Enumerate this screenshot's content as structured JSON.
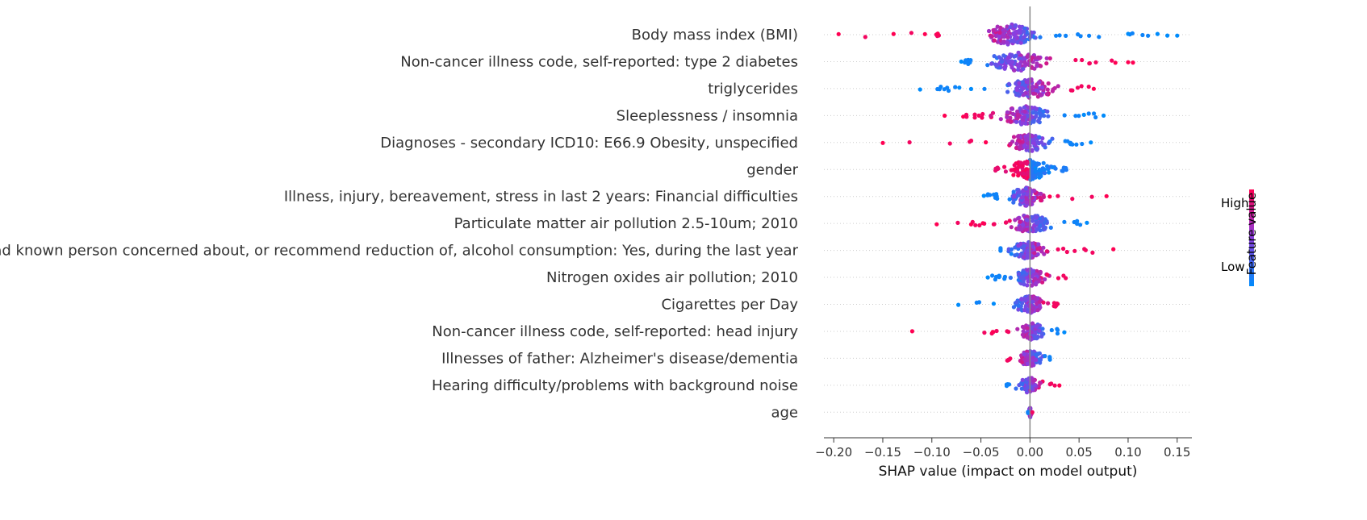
{
  "chart_data": {
    "type": "scatter",
    "subtype": "shap-beeswarm",
    "title": "",
    "xlabel": "SHAP value (impact on model output)",
    "xlim": [
      -0.21,
      0.165
    ],
    "xticks": [
      -0.2,
      -0.15,
      -0.1,
      -0.05,
      0.0,
      0.05,
      0.1,
      0.15
    ],
    "xtick_labels": [
      "−0.20",
      "−0.15",
      "−0.10",
      "−0.05",
      "0.00",
      "0.05",
      "0.10",
      "0.15"
    ],
    "colorbar": {
      "label": "Feature value",
      "high_label": "High",
      "low_label": "Low",
      "low_color": "#008bfb",
      "high_color": "#ff0052"
    },
    "features": [
      {
        "name": "Body mass index (BMI)",
        "min": -0.195,
        "max": 0.15,
        "mode": -0.02,
        "n": 130,
        "spread": 0.022,
        "hw": 13,
        "corr": -1,
        "outliers": [
          [
            -0.195,
            1
          ],
          [
            -0.139,
            1
          ],
          [
            -0.107,
            1
          ],
          [
            -0.094,
            1
          ],
          [
            0.1,
            0
          ],
          [
            0.13,
            0
          ],
          [
            0.14,
            0
          ],
          [
            0.15,
            0
          ]
        ]
      },
      {
        "name": "Non-cancer illness code, self-reported: type 2 diabetes",
        "min": -0.07,
        "max": 0.105,
        "mode": -0.01,
        "n": 120,
        "spread": 0.025,
        "hw": 12,
        "corr": 1,
        "outliers": [
          [
            -0.07,
            0
          ],
          [
            0.087,
            1
          ],
          [
            0.1,
            1
          ],
          [
            0.105,
            1
          ]
        ]
      },
      {
        "name": "triglycerides",
        "min": -0.112,
        "max": 0.065,
        "mode": 0.0,
        "n": 110,
        "spread": 0.02,
        "hw": 12,
        "corr": 1,
        "outliers": [
          [
            -0.112,
            0
          ],
          [
            -0.072,
            0
          ],
          [
            -0.06,
            0
          ],
          [
            0.065,
            1
          ]
        ]
      },
      {
        "name": "Sleeplessness / insomnia",
        "min": -0.087,
        "max": 0.075,
        "mode": -0.005,
        "n": 110,
        "spread": 0.02,
        "hw": 12,
        "corr": -1,
        "outliers": [
          [
            -0.087,
            1
          ],
          [
            -0.068,
            1
          ],
          [
            0.055,
            0
          ],
          [
            0.075,
            0
          ]
        ]
      },
      {
        "name": "Diagnoses - secondary ICD10: E66.9 Obesity, unspecified",
        "min": -0.15,
        "max": 0.062,
        "mode": 0.0,
        "n": 100,
        "spread": 0.016,
        "hw": 12,
        "corr": -1,
        "outliers": [
          [
            -0.15,
            1
          ],
          [
            -0.045,
            1
          ],
          [
            0.062,
            0
          ]
        ]
      },
      {
        "name": "gender",
        "min": -0.036,
        "max": 0.04,
        "mode": 0.0,
        "n": 110,
        "spread": 0.016,
        "hw": 13,
        "corr": -1,
        "split": true,
        "outliers": []
      },
      {
        "name": "Illness, injury, bereavement, stress in last 2 years: Financial difficulties",
        "min": -0.047,
        "max": 0.078,
        "mode": -0.004,
        "n": 100,
        "spread": 0.014,
        "hw": 12,
        "corr": 1,
        "outliers": [
          [
            -0.047,
            0
          ],
          [
            0.078,
            1
          ]
        ]
      },
      {
        "name": "Particulate matter air pollution 2.5-10um; 2010",
        "min": -0.095,
        "max": 0.058,
        "mode": 0.0,
        "n": 100,
        "spread": 0.016,
        "hw": 12,
        "corr": -1,
        "outliers": [
          [
            -0.095,
            1
          ],
          [
            -0.06,
            1
          ],
          [
            -0.048,
            1
          ],
          [
            0.058,
            0
          ]
        ]
      },
      {
        "name": "Ever had known person concerned about, or recommend reduction of, alcohol consumption: Yes, during the last year",
        "min": -0.03,
        "max": 0.085,
        "mode": -0.002,
        "n": 90,
        "spread": 0.014,
        "hw": 11,
        "corr": 1,
        "outliers": [
          [
            0.085,
            1
          ]
        ]
      },
      {
        "name": "Nitrogen oxides air pollution; 2010",
        "min": -0.043,
        "max": 0.04,
        "mode": 0.0,
        "n": 90,
        "spread": 0.012,
        "hw": 11,
        "corr": 1,
        "outliers": [
          [
            -0.043,
            0
          ]
        ]
      },
      {
        "name": "Cigarettes per Day",
        "min": -0.073,
        "max": 0.03,
        "mode": 0.0,
        "n": 90,
        "spread": 0.012,
        "hw": 11,
        "corr": 1,
        "outliers": [
          [
            -0.073,
            0
          ],
          [
            -0.037,
            0
          ]
        ]
      },
      {
        "name": "Non-cancer illness code, self-reported: head injury",
        "min": -0.12,
        "max": 0.035,
        "mode": 0.002,
        "n": 80,
        "spread": 0.01,
        "hw": 11,
        "corr": -1,
        "outliers": [
          [
            -0.12,
            1
          ],
          [
            -0.038,
            1
          ],
          [
            0.035,
            0
          ]
        ]
      },
      {
        "name": "Illnesses of father: Alzheimer's disease/dementia",
        "min": -0.027,
        "max": 0.022,
        "mode": 0.0,
        "n": 70,
        "spread": 0.01,
        "hw": 10,
        "corr": -1,
        "outliers": []
      },
      {
        "name": "Hearing difficulty/problems with background noise",
        "min": -0.027,
        "max": 0.03,
        "mode": 0.0,
        "n": 70,
        "spread": 0.01,
        "hw": 10,
        "corr": 1,
        "outliers": [
          [
            0.03,
            1
          ]
        ]
      },
      {
        "name": "age",
        "min": -0.002,
        "max": 0.003,
        "mode": 0.0,
        "n": 30,
        "spread": 0.001,
        "hw": 7,
        "corr": 1,
        "outliers": []
      }
    ]
  }
}
